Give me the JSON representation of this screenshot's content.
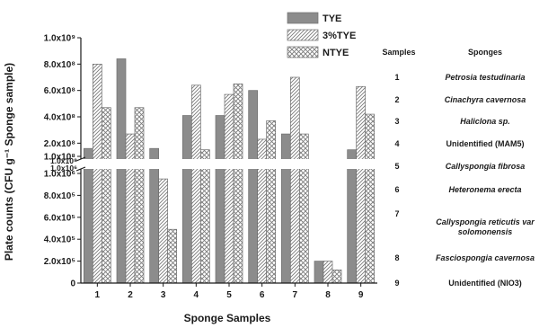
{
  "chart_data": {
    "type": "bar",
    "ylabel": "Plate counts (CFU g⁻¹ Sponge sample)",
    "xlabel": "Sponge Samples",
    "categories": [
      "1",
      "2",
      "3",
      "4",
      "5",
      "6",
      "7",
      "8",
      "9"
    ],
    "series": [
      {
        "name": "TYE",
        "pattern": "solid",
        "values": [
          160000000,
          840000000,
          160000000,
          410000000,
          410000000,
          600000000,
          270000000,
          200000,
          150000000
        ]
      },
      {
        "name": "3%TYE",
        "pattern": "hatch",
        "values": [
          800000000,
          270000000,
          950000,
          640000000,
          570000000,
          230000000,
          700000000,
          200000,
          630000000
        ]
      },
      {
        "name": "NTYE",
        "pattern": "cross",
        "values": [
          470000000,
          470000000,
          490000,
          150000000,
          650000000,
          370000000,
          270000000,
          120000,
          420000000
        ]
      }
    ],
    "y_axis_break": {
      "lower_range": [
        0,
        1000000
      ],
      "upper_range": [
        100000000,
        1000000000
      ],
      "lower_ticks": [
        "0",
        "2.0x10⁵",
        "4.0x10⁵",
        "6.0x10⁵",
        "8.0x10⁵",
        "1.0x10⁶"
      ],
      "upper_ticks": [
        "1.0x10⁸",
        "2.0x10⁸",
        "4.0x10⁸",
        "6.0x10⁸",
        "8.0x10⁸",
        "1.0x10⁹"
      ],
      "break_labels": [
        "1.0x10⁸",
        "1.0x10⁶"
      ]
    },
    "grid": false,
    "legend_position": "top-center"
  },
  "sponge_table": {
    "header_samples": "Samples",
    "header_sponges": "Sponges",
    "rows": [
      {
        "num": "1",
        "name": "Petrosia testudinaria",
        "italic": true
      },
      {
        "num": "2",
        "name": "Cinachyra cavernosa",
        "italic": true
      },
      {
        "num": "3",
        "name": "Haliclona sp.",
        "italic": true
      },
      {
        "num": "4",
        "name": "Unidentified (MAM5)",
        "italic": false
      },
      {
        "num": "5",
        "name": "Callyspongia fibrosa",
        "italic": true
      },
      {
        "num": "6",
        "name": "Heteronema erecta",
        "italic": true
      },
      {
        "num": "7",
        "name": "Callyspongia reticutis var solomonensis",
        "italic": true
      },
      {
        "num": "8",
        "name": "Fasciospongia cavernosa",
        "italic": true
      },
      {
        "num": "9",
        "name": "Unidentified (NIO3)",
        "italic": false
      }
    ]
  },
  "colors": {
    "solid_fill": "#8c8c8c",
    "pattern_stroke": "#7a7a7a",
    "axis": "#1a1a1a"
  }
}
